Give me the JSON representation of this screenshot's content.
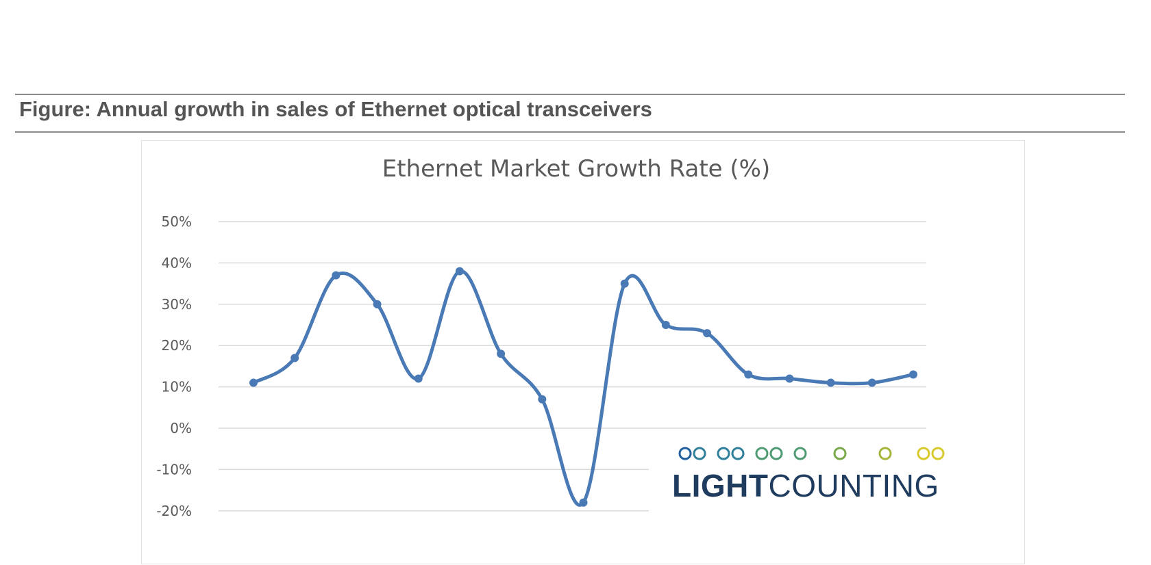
{
  "figure": {
    "caption": "Figure: Annual growth in sales of Ethernet optical transceivers"
  },
  "logo": {
    "text_bold": "LIGHT",
    "text_regular": "COUNTING",
    "text_color": "#1f3b5e",
    "chain_colors": [
      "#1f5f9e",
      "#2f7f9a",
      "#4e9a73",
      "#79a84a",
      "#a7b43c",
      "#d8c92c"
    ]
  },
  "chart_data": {
    "type": "line",
    "title": "Ethernet Market Growth Rate (%)",
    "xlabel": "",
    "ylabel": "",
    "ylim": [
      -20,
      50
    ],
    "y_ticks": [
      -20,
      -10,
      0,
      10,
      20,
      30,
      40,
      50
    ],
    "y_tick_labels": [
      "-20%",
      "-10%",
      "0%",
      "10%",
      "20%",
      "30%",
      "40%",
      "50%"
    ],
    "grid": true,
    "smooth": true,
    "series_color": "#4a7ab5",
    "series": [
      {
        "values": [
          11,
          17,
          37,
          30,
          12,
          38,
          18,
          7,
          -18,
          35,
          25,
          23,
          13,
          12,
          11,
          11,
          13
        ]
      }
    ]
  }
}
